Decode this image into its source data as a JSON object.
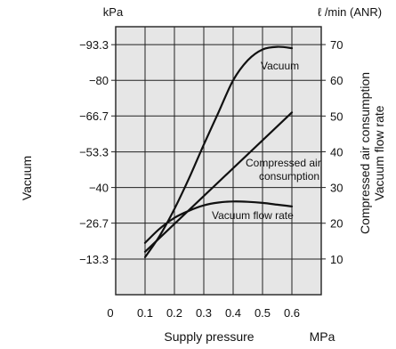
{
  "colors": {
    "plot_background": "#e6e6e6",
    "grid": "#222222",
    "curves": "#111111"
  },
  "chart_data": {
    "type": "line",
    "grid": true,
    "x": {
      "label": "Supply pressure",
      "unit": "MPa",
      "range": [
        0,
        0.7
      ],
      "origin_label": "0",
      "ticks": [
        0.1,
        0.2,
        0.3,
        0.4,
        0.5,
        0.6
      ],
      "tick_labels": [
        "0.1",
        "0.2",
        "0.3",
        "0.4",
        "0.5",
        "0.6"
      ]
    },
    "y_left": {
      "label": "Vacuum",
      "unit": "kPa",
      "range": [
        0,
        -100
      ],
      "ticks": [
        -13.3,
        -26.7,
        -40,
        -53.3,
        -66.7,
        -80,
        -93.3
      ],
      "tick_labels": [
        "−13.3",
        "−26.7",
        "−40",
        "−53.3",
        "−66.7",
        "−80",
        "−93.3"
      ]
    },
    "y_right": {
      "label_lines": [
        "Compressed air consumption",
        "Vacuum flow rate"
      ],
      "unit": "ℓ /min (ANR)",
      "range": [
        0,
        75
      ],
      "ticks": [
        10,
        20,
        30,
        40,
        50,
        60,
        70
      ],
      "tick_labels": [
        "10",
        "20",
        "30",
        "40",
        "50",
        "60",
        "70"
      ]
    },
    "series": [
      {
        "name": "Vacuum",
        "axis": "y_left",
        "x": [
          0.1,
          0.15,
          0.2,
          0.25,
          0.3,
          0.35,
          0.4,
          0.45,
          0.5,
          0.55,
          0.6
        ],
        "y": [
          -14,
          -22,
          -32,
          -43.5,
          -56,
          -68,
          -80,
          -87.5,
          -91.5,
          -92.5,
          -92
        ]
      },
      {
        "name_lines": [
          "Compressed air",
          "consumption"
        ],
        "axis": "y_right",
        "x": [
          0.1,
          0.6
        ],
        "y": [
          12,
          51
        ]
      },
      {
        "name": "Vacuum flow rate",
        "axis": "y_right",
        "x": [
          0.1,
          0.15,
          0.2,
          0.25,
          0.3,
          0.35,
          0.4,
          0.45,
          0.5,
          0.55,
          0.6
        ],
        "y": [
          14.5,
          18.5,
          21.5,
          23.5,
          25,
          25.8,
          26.1,
          26,
          25.7,
          25.2,
          24.7
        ]
      }
    ]
  }
}
